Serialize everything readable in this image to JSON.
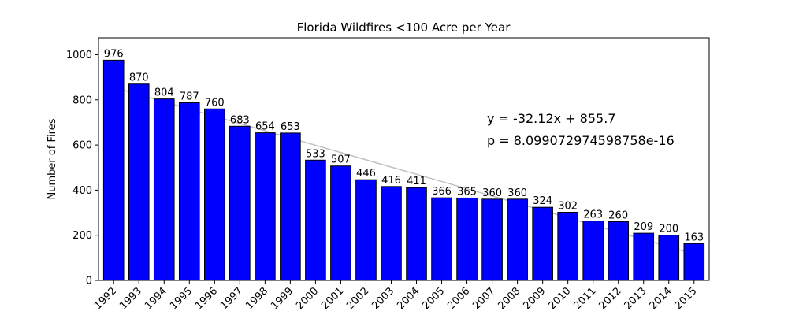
{
  "chart_data": {
    "type": "bar",
    "title": "Florida Wildfires <100 Acre per Year",
    "xlabel": "",
    "ylabel": "Number of Fires",
    "categories": [
      "1992",
      "1993",
      "1994",
      "1995",
      "1996",
      "1997",
      "1998",
      "1999",
      "2000",
      "2001",
      "2002",
      "2003",
      "2004",
      "2005",
      "2006",
      "2007",
      "2008",
      "2009",
      "2010",
      "2011",
      "2012",
      "2013",
      "2014",
      "2015"
    ],
    "values": [
      976,
      870,
      804,
      787,
      760,
      683,
      654,
      653,
      533,
      507,
      446,
      416,
      411,
      366,
      365,
      360,
      360,
      324,
      302,
      263,
      260,
      209,
      200,
      163
    ],
    "ylim": [
      0,
      1075
    ],
    "yticks": [
      0,
      200,
      400,
      600,
      800,
      1000
    ],
    "bar_color": "#0000ff",
    "bar_edge_color": "#000000",
    "trendline": {
      "slope": -32.12,
      "intercept": 855.7,
      "color": "#c0c0c0"
    },
    "annotations": [
      "y = -32.12x + 855.7",
      "p = 8.099072974598758e-16"
    ],
    "grid": false,
    "legend": "none"
  }
}
